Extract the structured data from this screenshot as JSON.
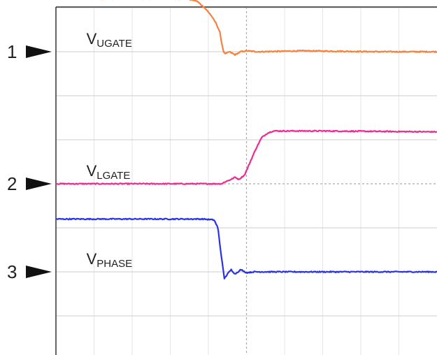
{
  "chart_data": {
    "type": "line",
    "title": "",
    "xlabel": "",
    "ylabel": "",
    "xlim": [
      0,
      10
    ],
    "ylim": [
      0,
      8
    ],
    "grid": true,
    "colors": {
      "ch1": "#f5813c",
      "ch2": "#ee2b8f",
      "ch3": "#2a32e8"
    },
    "markers": [
      {
        "label": "1",
        "y": 6
      },
      {
        "label": "2",
        "y": 3
      },
      {
        "label": "3",
        "y": 1
      }
    ],
    "series": [
      {
        "label_main": "V",
        "label_sub": "UGATE",
        "label_at": {
          "x": 0.8,
          "y": 6.3
        },
        "color": "ch1",
        "points": [
          [
            0,
            7.2
          ],
          [
            3.45,
            7.2
          ],
          [
            3.7,
            7.15
          ],
          [
            3.9,
            7.0
          ],
          [
            4.05,
            6.85
          ],
          [
            4.2,
            6.65
          ],
          [
            4.3,
            6.45
          ],
          [
            4.35,
            6.2
          ],
          [
            4.4,
            6.0
          ],
          [
            4.45,
            5.95
          ],
          [
            4.55,
            6.0
          ],
          [
            4.7,
            5.93
          ],
          [
            4.85,
            6.0
          ],
          [
            5.0,
            6.02
          ],
          [
            5.3,
            6.0
          ],
          [
            6.5,
            6.02
          ],
          [
            8.5,
            6.0
          ],
          [
            10,
            6.0
          ]
        ],
        "noise": 0.012
      },
      {
        "label_main": "V",
        "label_sub": "LGATE",
        "label_at": {
          "x": 0.8,
          "y": 3.3
        },
        "color": "ch2",
        "points": [
          [
            0,
            3.0
          ],
          [
            4.35,
            3.0
          ],
          [
            4.45,
            3.05
          ],
          [
            4.6,
            3.1
          ],
          [
            4.7,
            3.15
          ],
          [
            4.8,
            3.1
          ],
          [
            4.95,
            3.2
          ],
          [
            5.1,
            3.5
          ],
          [
            5.25,
            3.8
          ],
          [
            5.4,
            4.05
          ],
          [
            5.55,
            4.15
          ],
          [
            5.7,
            4.2
          ],
          [
            7.0,
            4.2
          ],
          [
            10,
            4.18
          ]
        ],
        "noise": 0.012
      },
      {
        "label_main": "V",
        "label_sub": "PHASE",
        "label_at": {
          "x": 0.8,
          "y": 1.3
        },
        "color": "ch3",
        "points": [
          [
            0,
            2.2
          ],
          [
            3.85,
            2.2
          ],
          [
            4.15,
            2.18
          ],
          [
            4.25,
            2.0
          ],
          [
            4.32,
            1.5
          ],
          [
            4.38,
            1.1
          ],
          [
            4.42,
            0.85
          ],
          [
            4.5,
            0.95
          ],
          [
            4.6,
            1.05
          ],
          [
            4.7,
            0.95
          ],
          [
            4.85,
            1.05
          ],
          [
            5.0,
            0.98
          ],
          [
            5.2,
            1.0
          ],
          [
            7.0,
            1.0
          ],
          [
            10,
            1.0
          ]
        ],
        "noise": 0.012
      }
    ]
  }
}
